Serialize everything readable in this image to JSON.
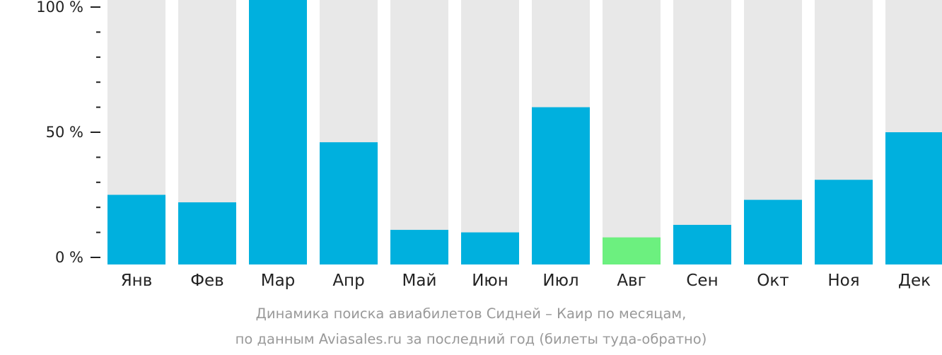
{
  "chart_data": {
    "type": "bar",
    "categories": [
      "Янв",
      "Фев",
      "Мар",
      "Апр",
      "Май",
      "Июн",
      "Июл",
      "Авг",
      "Сен",
      "Окт",
      "Ноя",
      "Дек"
    ],
    "values": [
      25,
      22,
      100,
      46,
      11,
      10,
      60,
      8,
      13,
      23,
      31,
      50
    ],
    "ylim": [
      0,
      100
    ],
    "yticks": [
      {
        "value": 0,
        "label": "0 %"
      },
      {
        "value": 50,
        "label": "50 %"
      },
      {
        "value": 100,
        "label": "100 %"
      }
    ],
    "minor_tick_step": 10,
    "highlight_index": 7,
    "colors": {
      "bar": "#00b0de",
      "highlight": "#6cf07f",
      "background_bar": "#e8e8e8",
      "axis": "#222222"
    },
    "caption": [
      "Динамика поиска авиабилетов Сидней – Каир по месяцам,",
      "по данным Aviasales.ru за последний год (билеты туда-обратно)"
    ]
  }
}
